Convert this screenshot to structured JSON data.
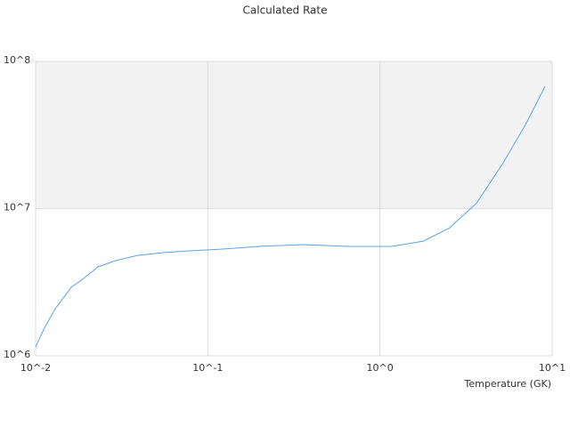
{
  "chart_data": {
    "type": "line",
    "title": "Calculated Rate",
    "x_label": "Temperature (GK)",
    "xscale": "log",
    "yscale": "log",
    "xlim": [
      0.01,
      10
    ],
    "ylim": [
      1000000,
      100000000
    ],
    "xticks": [
      {
        "value": 0.01,
        "label": "10^-2"
      },
      {
        "value": 0.1,
        "label": "10^-1"
      },
      {
        "value": 1,
        "label": "10^0"
      },
      {
        "value": 10,
        "label": "10^1"
      }
    ],
    "yticks": [
      {
        "value": 1000000,
        "label": "10^6"
      },
      {
        "value": 10000000,
        "label": "10^7"
      },
      {
        "value": 100000000,
        "label": "10^8"
      }
    ],
    "grid": true,
    "series": [
      {
        "color": "#5ca3e6",
        "x": [
          0.01,
          0.0113,
          0.013,
          0.0161,
          0.0193,
          0.023,
          0.0292,
          0.0394,
          0.0562,
          0.0804,
          0.122,
          0.196,
          0.356,
          0.647,
          1.17,
          1.78,
          2.54,
          3.64,
          5.2,
          7.0,
          9.1
        ],
        "values": [
          1150000,
          1560000,
          2090000,
          2920000,
          3400000,
          4020000,
          4440000,
          4820000,
          5030000,
          5170000,
          5310000,
          5540000,
          5690000,
          5540000,
          5540000,
          6010000,
          7410000,
          10900000,
          20500000,
          37200000,
          67800000
        ]
      }
    ]
  }
}
